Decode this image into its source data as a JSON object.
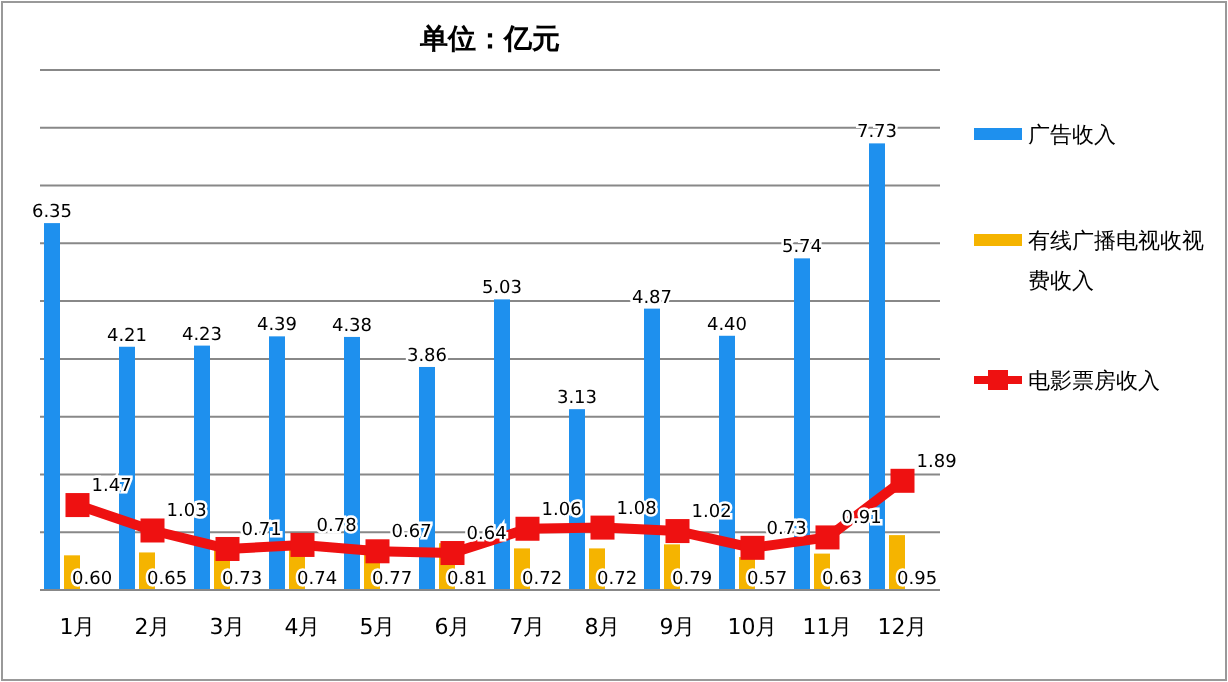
{
  "chart_data": {
    "type": "bar",
    "title": "单位：亿元",
    "categories": [
      "1月",
      "2月",
      "3月",
      "4月",
      "5月",
      "6月",
      "7月",
      "8月",
      "9月",
      "10月",
      "11月",
      "12月"
    ],
    "series": [
      {
        "name": "广告收入",
        "color": "#1e90ee",
        "values": [
          6.35,
          4.21,
          4.23,
          4.39,
          4.38,
          3.86,
          5.03,
          3.13,
          4.87,
          4.4,
          5.74,
          7.73
        ],
        "value_labels": [
          "6.35",
          "4.21",
          "4.23",
          "4.39",
          "4.38",
          "3.86",
          "5.03",
          "3.13",
          "4.87",
          "4.40",
          "5.74",
          "7.73"
        ]
      },
      {
        "name": "有线广播电视收视费收入",
        "color": "#f5b400",
        "values": [
          0.6,
          0.65,
          0.73,
          0.74,
          0.77,
          0.81,
          0.72,
          0.72,
          0.79,
          0.57,
          0.63,
          0.95
        ],
        "value_labels": [
          "0.60",
          "0.65",
          "0.73",
          "0.74",
          "0.77",
          "0.81",
          "0.72",
          "0.72",
          "0.79",
          "0.57",
          "0.63",
          "0.95"
        ]
      },
      {
        "name": "电影票房收入",
        "color": "#ee1111",
        "type": "line",
        "marker": "square",
        "values": [
          1.47,
          1.03,
          0.71,
          0.78,
          0.67,
          0.64,
          1.06,
          1.08,
          1.02,
          0.73,
          0.91,
          1.89
        ],
        "value_labels": [
          "1.47",
          "1.03",
          "0.71",
          "0.78",
          "0.67",
          "0.64",
          "1.06",
          "1.08",
          "1.02",
          "0.73",
          "0.91",
          "1.89"
        ]
      }
    ],
    "ylim": [
      0,
      9
    ],
    "yticks": [
      0,
      1,
      2,
      3,
      4,
      5,
      6,
      7,
      8,
      9
    ],
    "tick_labels": "x",
    "grid": "y",
    "legend": "right",
    "data_labels": true
  }
}
